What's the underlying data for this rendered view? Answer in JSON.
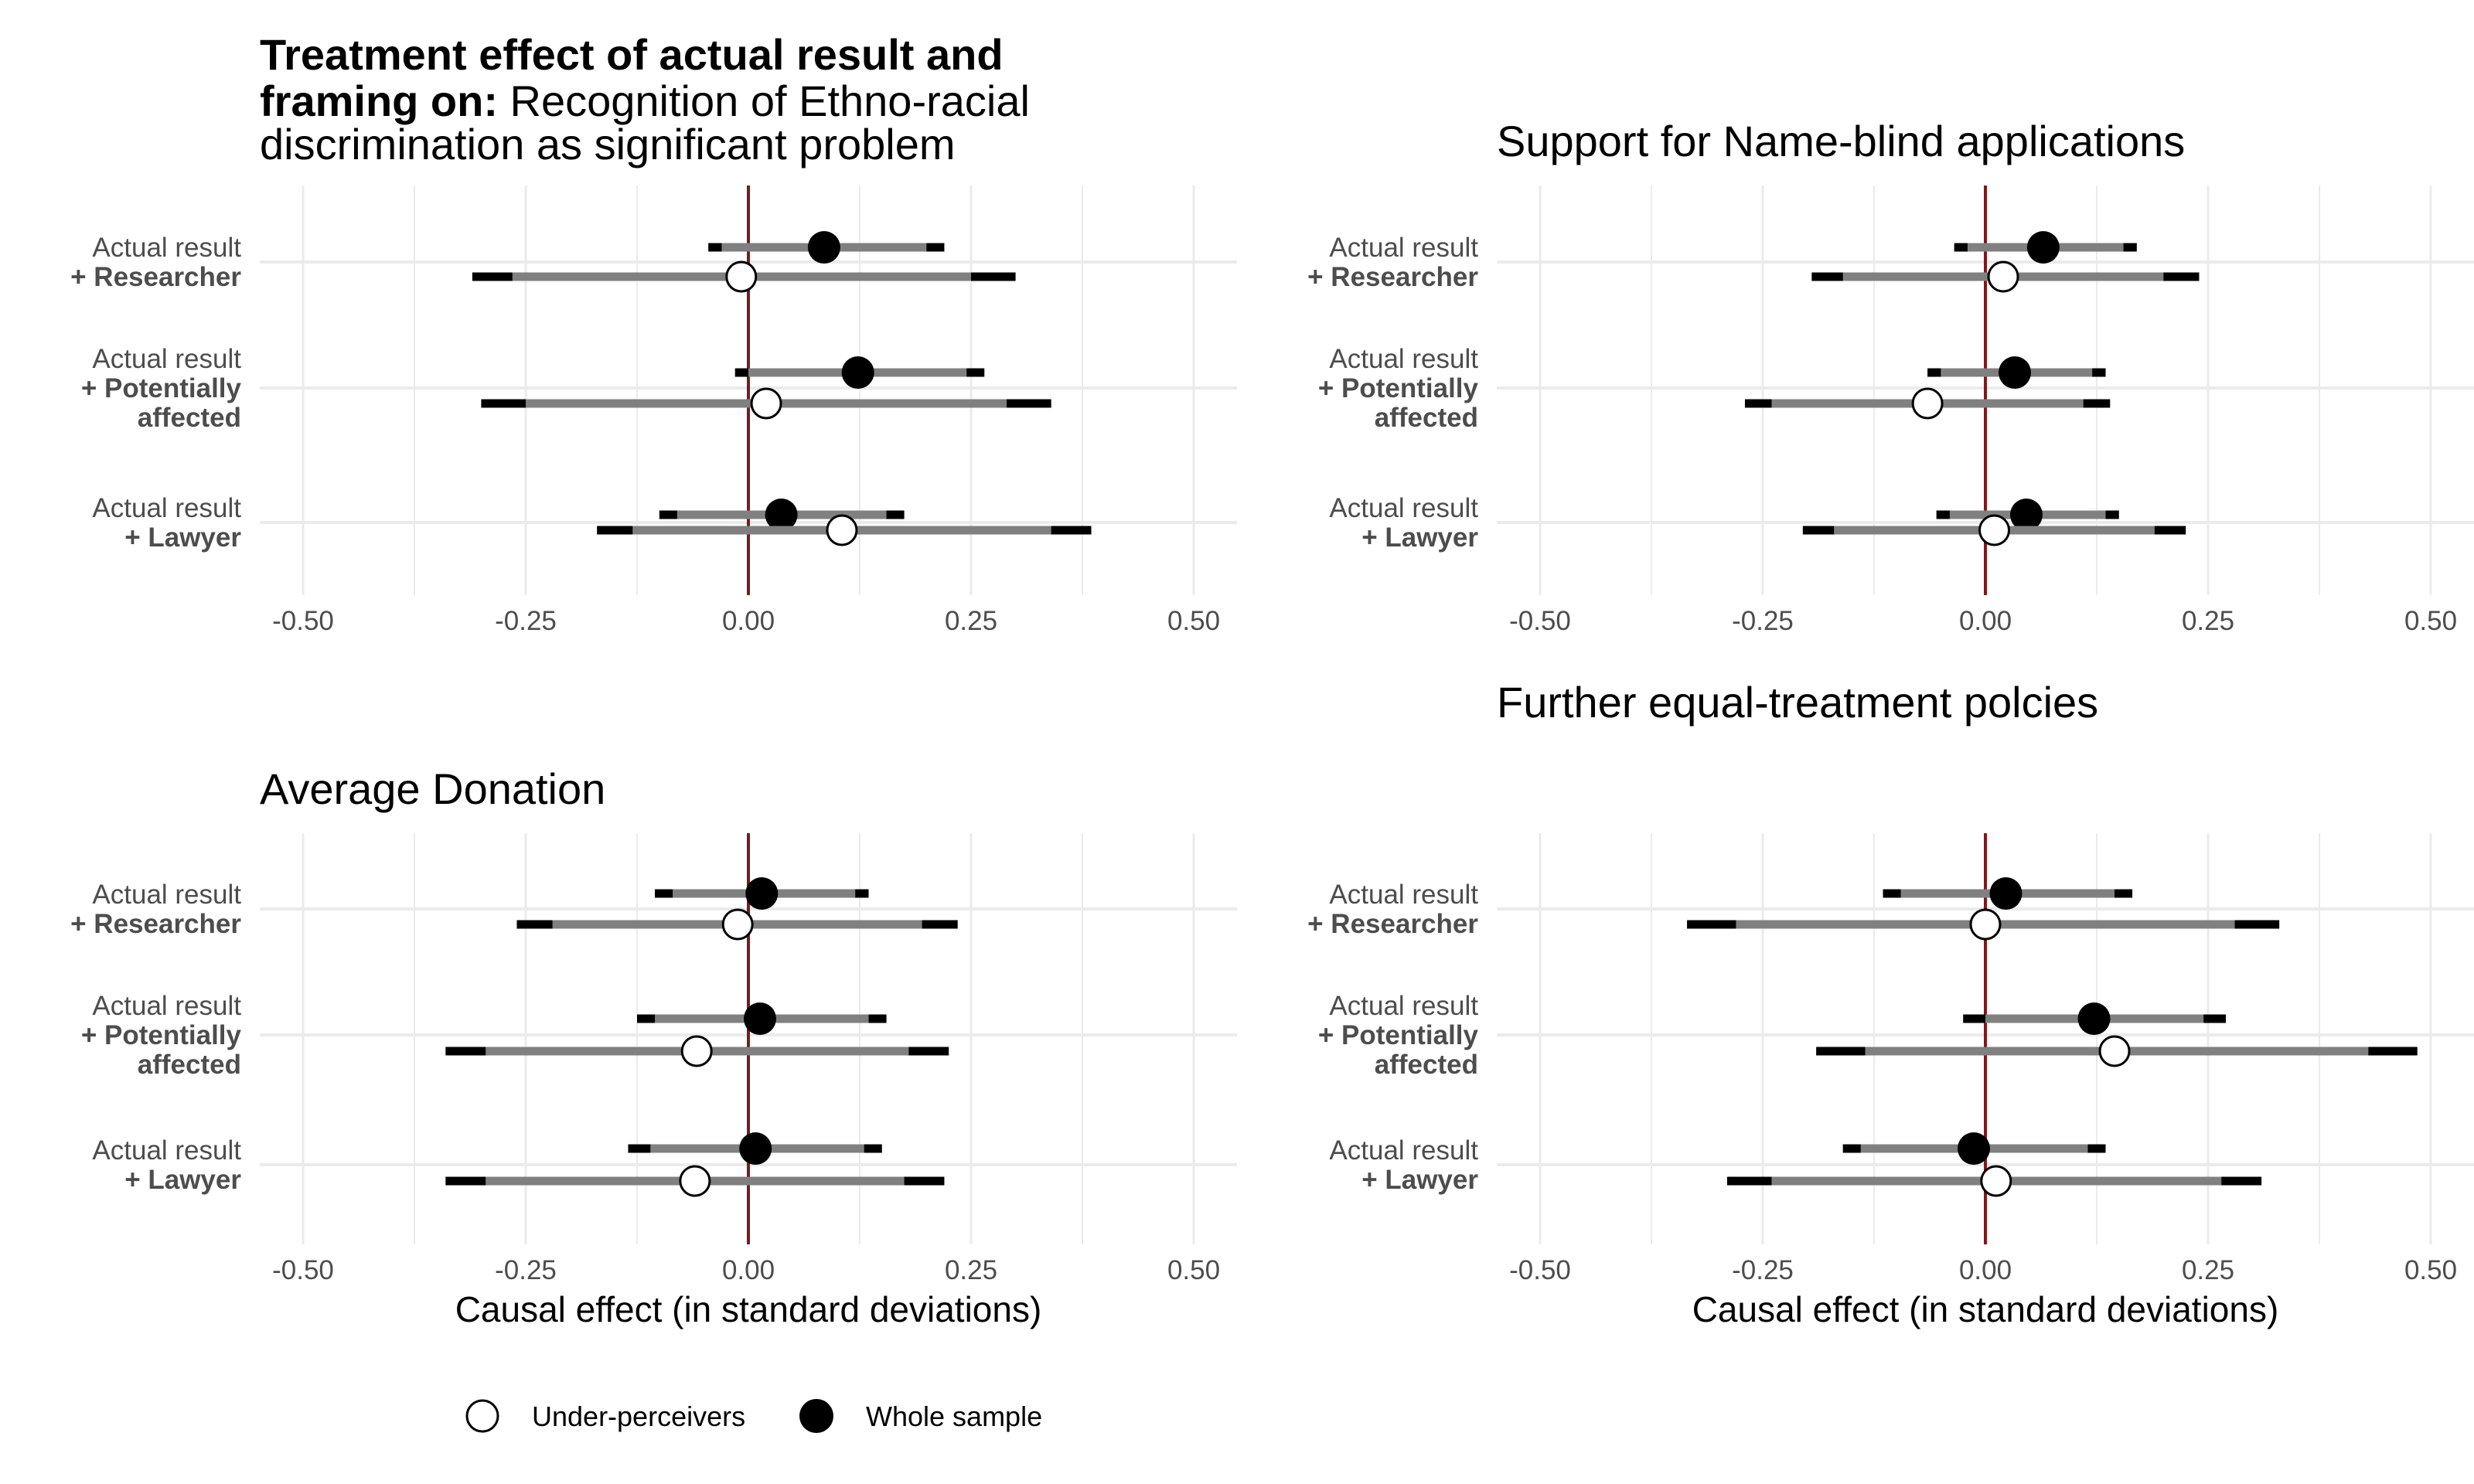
{
  "chart_data": [
    {
      "type": "dot-whisker",
      "title_bold": "Treatment effect of actual result and framing on:",
      "title": "Recognition of Ethno-racial discrimination as significant problem",
      "xlabel": "",
      "xlim": [
        -0.5,
        0.5
      ],
      "x_ticks": [
        "-0.50",
        "-0.25",
        "0.00",
        "0.25",
        "0.50"
      ],
      "x_tick_values": [
        -0.5,
        -0.25,
        0,
        0.25,
        0.5
      ],
      "grid": true,
      "categories": [
        {
          "line1": "Actual result",
          "line2": "+ Researcher",
          "line3": ""
        },
        {
          "line1": "Actual result",
          "line2": "+ Potentially",
          "line3": "affected"
        },
        {
          "line1": "Actual result",
          "line2": "+ Lawyer",
          "line3": ""
        }
      ],
      "series": [
        {
          "name": "Whole sample",
          "estimates": [
            0.085,
            0.123,
            0.037
          ],
          "ci90": [
            [
              -0.03,
              0.2
            ],
            [
              0.0,
              0.245
            ],
            [
              -0.08,
              0.155
            ]
          ],
          "ci95": [
            [
              -0.045,
              0.22
            ],
            [
              -0.015,
              0.265
            ],
            [
              -0.1,
              0.175
            ]
          ]
        },
        {
          "name": "Under-perceivers",
          "estimates": [
            -0.008,
            0.02,
            0.105
          ],
          "ci90": [
            [
              -0.265,
              0.25
            ],
            [
              -0.25,
              0.29
            ],
            [
              -0.13,
              0.34
            ]
          ],
          "ci95": [
            [
              -0.31,
              0.3
            ],
            [
              -0.3,
              0.34
            ],
            [
              -0.17,
              0.385
            ]
          ]
        }
      ]
    },
    {
      "type": "dot-whisker",
      "title_bold": "",
      "title": "Support for Name-blind applications",
      "xlabel": "",
      "xlim": [
        -0.5,
        0.5
      ],
      "x_ticks": [
        "-0.50",
        "-0.25",
        "0.00",
        "0.25",
        "0.50"
      ],
      "x_tick_values": [
        -0.5,
        -0.25,
        0,
        0.25,
        0.5
      ],
      "grid": true,
      "categories": [
        {
          "line1": "Actual result",
          "line2": "+ Researcher",
          "line3": ""
        },
        {
          "line1": "Actual result",
          "line2": "+ Potentially",
          "line3": "affected"
        },
        {
          "line1": "Actual result",
          "line2": "+ Lawyer",
          "line3": ""
        }
      ],
      "series": [
        {
          "name": "Whole sample",
          "estimates": [
            0.065,
            0.033,
            0.046
          ],
          "ci90": [
            [
              -0.02,
              0.155
            ],
            [
              -0.05,
              0.12
            ],
            [
              -0.04,
              0.135
            ]
          ],
          "ci95": [
            [
              -0.035,
              0.17
            ],
            [
              -0.065,
              0.135
            ],
            [
              -0.055,
              0.15
            ]
          ]
        },
        {
          "name": "Under-perceivers",
          "estimates": [
            0.02,
            -0.065,
            0.01
          ],
          "ci90": [
            [
              -0.16,
              0.2
            ],
            [
              -0.24,
              0.11
            ],
            [
              -0.17,
              0.19
            ]
          ],
          "ci95": [
            [
              -0.195,
              0.24
            ],
            [
              -0.27,
              0.14
            ],
            [
              -0.205,
              0.225
            ]
          ]
        }
      ]
    },
    {
      "type": "dot-whisker",
      "title_bold": "",
      "title": "Average Donation",
      "xlabel": "Causal effect (in standard deviations)",
      "xlim": [
        -0.5,
        0.5
      ],
      "x_ticks": [
        "-0.50",
        "-0.25",
        "0.00",
        "0.25",
        "0.50"
      ],
      "x_tick_values": [
        -0.5,
        -0.25,
        0,
        0.25,
        0.5
      ],
      "grid": true,
      "categories": [
        {
          "line1": "Actual result",
          "line2": "+ Researcher",
          "line3": ""
        },
        {
          "line1": "Actual result",
          "line2": "+ Potentially",
          "line3": "affected"
        },
        {
          "line1": "Actual result",
          "line2": "+ Lawyer",
          "line3": ""
        }
      ],
      "series": [
        {
          "name": "Whole sample",
          "estimates": [
            0.015,
            0.013,
            0.008
          ],
          "ci90": [
            [
              -0.085,
              0.12
            ],
            [
              -0.105,
              0.135
            ],
            [
              -0.11,
              0.13
            ]
          ],
          "ci95": [
            [
              -0.105,
              0.135
            ],
            [
              -0.125,
              0.155
            ],
            [
              -0.135,
              0.15
            ]
          ]
        },
        {
          "name": "Under-perceivers",
          "estimates": [
            -0.012,
            -0.058,
            -0.06
          ],
          "ci90": [
            [
              -0.22,
              0.195
            ],
            [
              -0.295,
              0.18
            ],
            [
              -0.295,
              0.175
            ]
          ],
          "ci95": [
            [
              -0.26,
              0.235
            ],
            [
              -0.34,
              0.225
            ],
            [
              -0.34,
              0.22
            ]
          ]
        }
      ]
    },
    {
      "type": "dot-whisker",
      "title_bold": "",
      "title": "Further equal-treatment polcies",
      "xlabel": "Causal effect (in standard deviations)",
      "xlim": [
        -0.5,
        0.5
      ],
      "x_ticks": [
        "-0.50",
        "-0.25",
        "0.00",
        "0.25",
        "0.50"
      ],
      "x_tick_values": [
        -0.5,
        -0.25,
        0,
        0.25,
        0.5
      ],
      "grid": true,
      "categories": [
        {
          "line1": "Actual result",
          "line2": "+ Researcher",
          "line3": ""
        },
        {
          "line1": "Actual result",
          "line2": "+ Potentially",
          "line3": "affected"
        },
        {
          "line1": "Actual result",
          "line2": "+ Lawyer",
          "line3": ""
        }
      ],
      "series": [
        {
          "name": "Whole sample",
          "estimates": [
            0.023,
            0.122,
            -0.013
          ],
          "ci90": [
            [
              -0.095,
              0.145
            ],
            [
              0.0,
              0.245
            ],
            [
              -0.14,
              0.115
            ]
          ],
          "ci95": [
            [
              -0.115,
              0.165
            ],
            [
              -0.025,
              0.27
            ],
            [
              -0.16,
              0.135
            ]
          ]
        },
        {
          "name": "Under-perceivers",
          "estimates": [
            0.0,
            0.145,
            0.012
          ],
          "ci90": [
            [
              -0.28,
              0.28
            ],
            [
              -0.135,
              0.43
            ],
            [
              -0.24,
              0.265
            ]
          ],
          "ci95": [
            [
              -0.335,
              0.33
            ],
            [
              -0.19,
              0.485
            ],
            [
              -0.29,
              0.31
            ]
          ]
        }
      ]
    }
  ],
  "legend": {
    "position": "bottom",
    "items": [
      {
        "label": "Under-perceivers",
        "marker": "open-circle"
      },
      {
        "label": "Whole sample",
        "marker": "filled-circle"
      }
    ]
  },
  "colors": {
    "zero_line": "#7a1a1e",
    "ci95": "#000000",
    "ci90": "#808080",
    "grid": "#ebebeb",
    "open_marker_fill": "#ffffff",
    "filled_marker": "#000000"
  }
}
